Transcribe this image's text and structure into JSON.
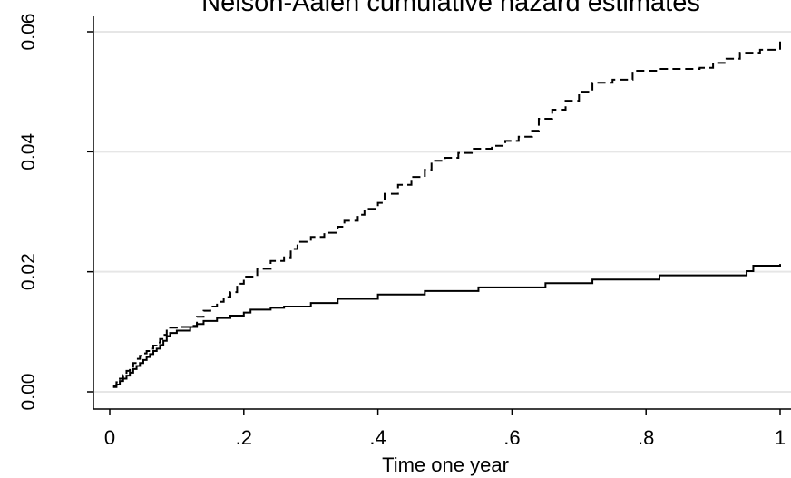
{
  "chart_data": {
    "type": "line",
    "title": "Nelson-Aalen cumulative hazard estimates",
    "xlabel": "Time one year",
    "ylabel": "",
    "xlim": [
      0,
      1
    ],
    "ylim": [
      0,
      0.06
    ],
    "x_ticks": [
      0,
      0.2,
      0.4,
      0.6,
      0.8,
      1
    ],
    "x_tick_labels": [
      "0",
      ".2",
      ".4",
      ".6",
      ".8",
      "1"
    ],
    "y_ticks": [
      0,
      0.02,
      0.04,
      0.06
    ],
    "y_tick_labels": [
      "0.00",
      "0.02",
      "0.04",
      "0.06"
    ],
    "grid": "horizontal",
    "legend": "none",
    "series": [
      {
        "style": "solid",
        "color": "#000000",
        "x": [
          0.005,
          0.01,
          0.015,
          0.02,
          0.025,
          0.03,
          0.035,
          0.04,
          0.045,
          0.05,
          0.055,
          0.06,
          0.065,
          0.07,
          0.075,
          0.08,
          0.085,
          0.09,
          0.1,
          0.12,
          0.13,
          0.14,
          0.16,
          0.18,
          0.2,
          0.21,
          0.24,
          0.26,
          0.3,
          0.34,
          0.4,
          0.47,
          0.55,
          0.65,
          0.72,
          0.82,
          0.95,
          0.96,
          1.0
        ],
        "y": [
          0.0008,
          0.0012,
          0.0018,
          0.0022,
          0.0027,
          0.0032,
          0.0038,
          0.0043,
          0.0048,
          0.0053,
          0.0058,
          0.0063,
          0.0068,
          0.0072,
          0.0078,
          0.0085,
          0.0093,
          0.0098,
          0.0102,
          0.0108,
          0.0113,
          0.0118,
          0.0123,
          0.0127,
          0.0132,
          0.0137,
          0.014,
          0.0142,
          0.0148,
          0.0155,
          0.0162,
          0.0168,
          0.0174,
          0.0181,
          0.0187,
          0.0194,
          0.0201,
          0.021,
          0.0213
        ]
      },
      {
        "style": "dashed",
        "color": "#000000",
        "x": [
          0.005,
          0.01,
          0.015,
          0.02,
          0.025,
          0.03,
          0.035,
          0.04,
          0.045,
          0.05,
          0.055,
          0.06,
          0.065,
          0.07,
          0.075,
          0.08,
          0.085,
          0.09,
          0.1,
          0.12,
          0.13,
          0.14,
          0.15,
          0.16,
          0.17,
          0.18,
          0.19,
          0.2,
          0.22,
          0.24,
          0.26,
          0.27,
          0.28,
          0.3,
          0.32,
          0.34,
          0.35,
          0.37,
          0.38,
          0.4,
          0.41,
          0.43,
          0.45,
          0.47,
          0.48,
          0.5,
          0.52,
          0.54,
          0.57,
          0.59,
          0.61,
          0.63,
          0.64,
          0.66,
          0.68,
          0.7,
          0.72,
          0.75,
          0.78,
          0.82,
          0.88,
          0.9,
          0.92,
          0.94,
          0.97,
          1.0
        ],
        "y": [
          0.001,
          0.0016,
          0.0022,
          0.0028,
          0.0035,
          0.0042,
          0.0048,
          0.0055,
          0.006,
          0.0064,
          0.0068,
          0.0072,
          0.0077,
          0.0082,
          0.0088,
          0.0095,
          0.0102,
          0.0107,
          0.0108,
          0.011,
          0.0125,
          0.0135,
          0.0142,
          0.015,
          0.0158,
          0.0166,
          0.018,
          0.0192,
          0.0205,
          0.0218,
          0.0224,
          0.0238,
          0.025,
          0.0258,
          0.0265,
          0.0275,
          0.0285,
          0.0295,
          0.0305,
          0.0315,
          0.033,
          0.0345,
          0.0358,
          0.037,
          0.0385,
          0.039,
          0.0398,
          0.0405,
          0.041,
          0.0418,
          0.0425,
          0.0435,
          0.0455,
          0.047,
          0.0485,
          0.05,
          0.0515,
          0.052,
          0.0535,
          0.0538,
          0.054,
          0.0548,
          0.0555,
          0.0565,
          0.057,
          0.0585
        ]
      }
    ]
  }
}
